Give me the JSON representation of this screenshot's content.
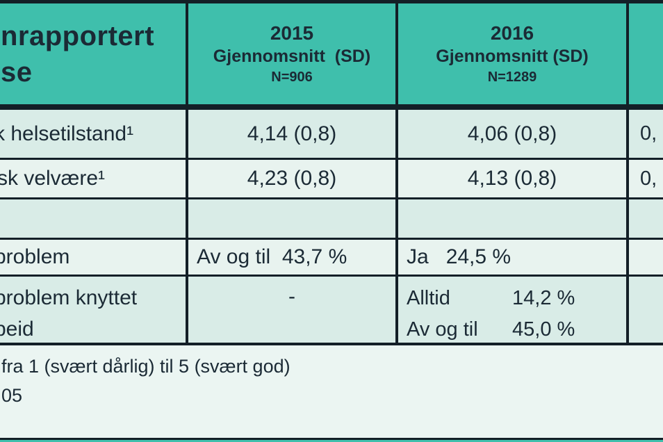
{
  "table_title": {
    "line1": "nrapportert",
    "line2": "se"
  },
  "header": {
    "col_2015": {
      "year": "2015",
      "measure": "Gjennomsnitt  (SD)",
      "n": "N=906"
    },
    "col_2016": {
      "year": "2016",
      "measure": "Gjennomsnitt (SD)",
      "n": "N=1289"
    }
  },
  "rows": {
    "helsetilstand": {
      "label": "k helsetilstand¹",
      "v2015": "4,14 (0,8)",
      "v2016": "4,06 (0,8)",
      "p": "0,"
    },
    "velvaere": {
      "label": "sk velvære¹",
      "v2015": "4,23 (0,8)",
      "v2016": "4,13 (0,8)",
      "p": "0,"
    },
    "spacer": {
      "label": "",
      "v2015": "",
      "v2016": "",
      "p": ""
    },
    "problem": {
      "label": "problem",
      "v2015": "Av og til  43,7 %",
      "v2016": "Ja   24,5 %",
      "p": ""
    },
    "problem_knyttet": {
      "label_line1": "problem knyttet",
      "label_line2": "beid",
      "v2015": "-",
      "v2016_line1_label": "Alltid",
      "v2016_line1_value": "14,2 %",
      "v2016_line2_label": "Av og til",
      "v2016_line2_value": "45,0 %",
      "p": ""
    }
  },
  "footnotes": {
    "line1": "fra 1 (svært dårlig) til 5 (svært god)",
    "line2": "05"
  },
  "colors": {
    "header_teal": "#3fbfac",
    "border_dark": "#131f27",
    "row_band_a": "#d9ece7",
    "row_band_b": "#e8f3ef",
    "footer_bg": "#ebf5f2",
    "text_ink": "#1b2a35"
  }
}
